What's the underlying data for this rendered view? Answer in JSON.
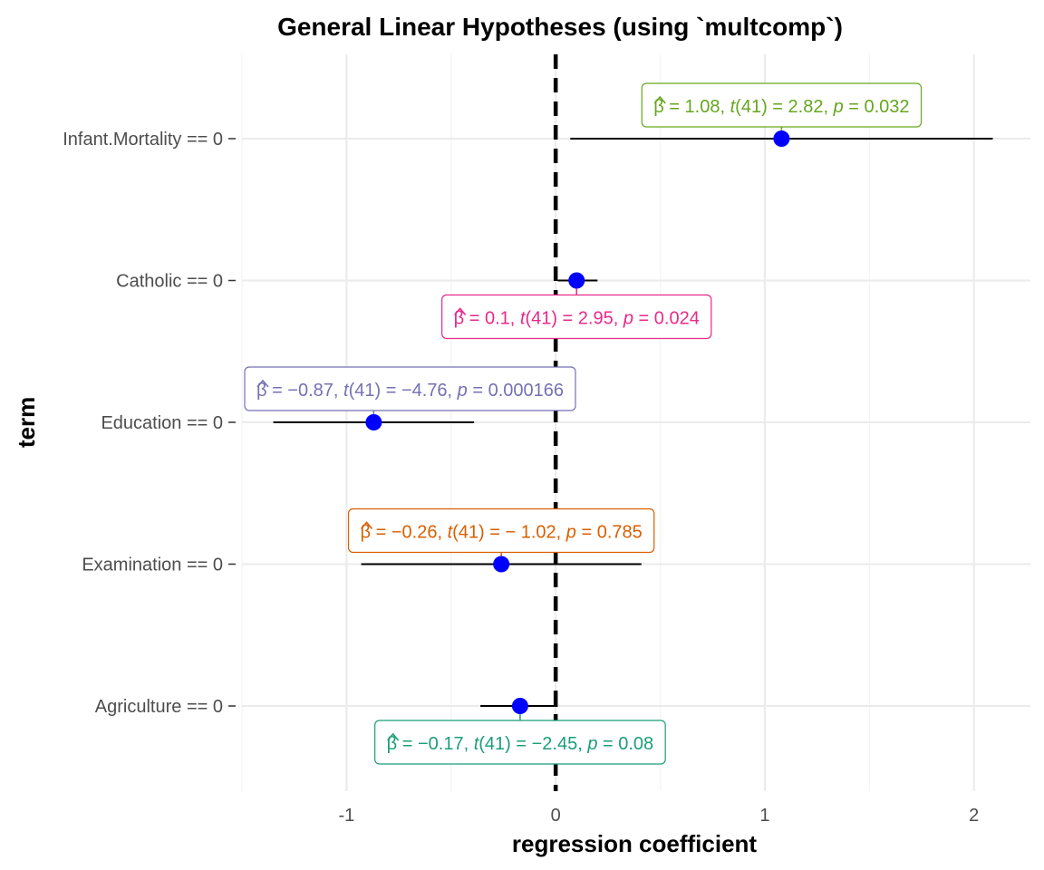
{
  "chart_data": {
    "type": "scatter",
    "title": "General Linear Hypotheses (using `multcomp`)",
    "xlabel": "regression coefficient",
    "ylabel": "term",
    "xlim": [
      -1.5,
      2.27
    ],
    "x_ticks": [
      -1,
      0,
      1,
      2
    ],
    "x_tick_labels": [
      "-1",
      "0",
      "1",
      "2"
    ],
    "reference_line": 0,
    "grid": true,
    "colors": {
      "point": "#0000ff",
      "interval": "#000000",
      "ref_line": "#000000",
      "grid": "#ebebeb"
    },
    "terms": [
      {
        "label": "Infant.Mortality == 0",
        "estimate": 1.08,
        "conf_low": 0.07,
        "conf_high": 2.09,
        "annot": {
          "beta": "1.08",
          "df": "41",
          "t": "2.82",
          "p": "0.032"
        },
        "annot_color": "#66a61e",
        "annot_side": "above"
      },
      {
        "label": "Catholic == 0",
        "estimate": 0.1,
        "conf_low": 0.01,
        "conf_high": 0.2,
        "annot": {
          "beta": "0.1",
          "df": "41",
          "t": "2.95",
          "p": "0.024"
        },
        "annot_color": "#e7298a",
        "annot_side": "below"
      },
      {
        "label": "Education == 0",
        "estimate": -0.87,
        "conf_low": -1.35,
        "conf_high": -0.39,
        "annot": {
          "beta": "−0.87",
          "df": "41",
          "t": "−4.76",
          "p": "0.000166"
        },
        "annot_color": "#7570b3",
        "annot_side": "above"
      },
      {
        "label": "Examination == 0",
        "estimate": -0.26,
        "conf_low": -0.93,
        "conf_high": 0.41,
        "annot": {
          "beta": "−0.26",
          "df": "41",
          "t": "− 1.02",
          "p": "0.785"
        },
        "annot_color": "#d95f02",
        "annot_side": "above"
      },
      {
        "label": "Agriculture == 0",
        "estimate": -0.17,
        "conf_low": -0.36,
        "conf_high": 0.01,
        "annot": {
          "beta": "−0.17",
          "df": "41",
          "t": "−2.45",
          "p": "0.08"
        },
        "annot_color": "#1b9e77",
        "annot_side": "below"
      }
    ]
  }
}
